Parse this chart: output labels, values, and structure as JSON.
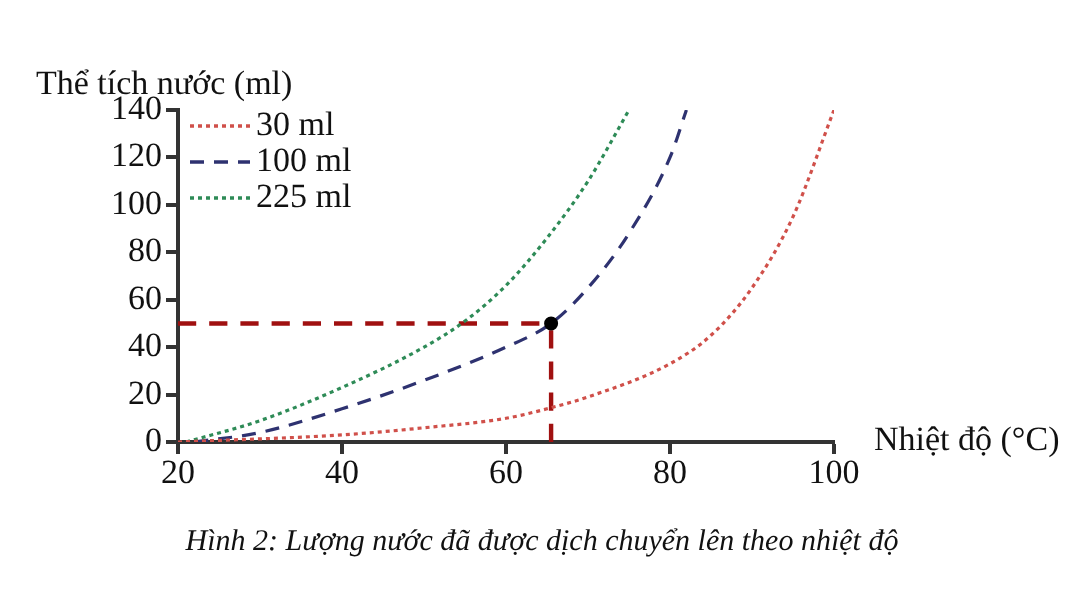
{
  "chart_data": {
    "type": "line",
    "ylabel": "Thể tích nước (ml)",
    "xlabel": "Nhiệt độ (°C)",
    "annotations": [
      "Hình 2: Lượng nước đã được dịch chuyển lên theo nhiệt độ"
    ],
    "xlim": [
      20,
      100
    ],
    "xticks": [
      20,
      40,
      60,
      80,
      100
    ],
    "ylim": [
      0,
      140
    ],
    "yticks": [
      0,
      20,
      40,
      60,
      80,
      100,
      120,
      140
    ],
    "grid": false,
    "legend": "top left",
    "marker": "none",
    "series": [
      {
        "name": "30 ml",
        "color": "#d0504a",
        "line_style": "dotted",
        "x": [
          20,
          40,
          50,
          60,
          65,
          70,
          80,
          85,
          90,
          95,
          100
        ],
        "values": [
          0,
          3,
          6,
          10,
          14,
          19,
          33,
          45,
          65,
          95,
          140
        ]
      },
      {
        "name": "100 ml",
        "color": "#2e3270",
        "line_style": "dashed",
        "x": [
          22,
          30,
          40,
          50,
          60,
          65.5,
          70,
          75,
          80,
          82
        ],
        "values": [
          0,
          4,
          14,
          26,
          40,
          50,
          65,
          88,
          120,
          140
        ]
      },
      {
        "name": "225 ml",
        "color": "#2e8b57",
        "line_style": "dotted",
        "x": [
          21,
          30,
          40,
          50,
          55,
          60,
          65,
          70,
          75
        ],
        "values": [
          0,
          9,
          23,
          40,
          51,
          66,
          86,
          110,
          140
        ]
      },
      {
        "type": "scatter",
        "color": "#000000",
        "marker": "circle",
        "x": [
          65.5
        ],
        "values": [
          50
        ]
      }
    ],
    "ref_lines": [
      {
        "axis": "y",
        "value": 50,
        "color": "#a01010",
        "line_style": "dashed"
      },
      {
        "axis": "x",
        "value": 65.5,
        "color": "#a01010",
        "line_style": "dashed"
      }
    ]
  }
}
